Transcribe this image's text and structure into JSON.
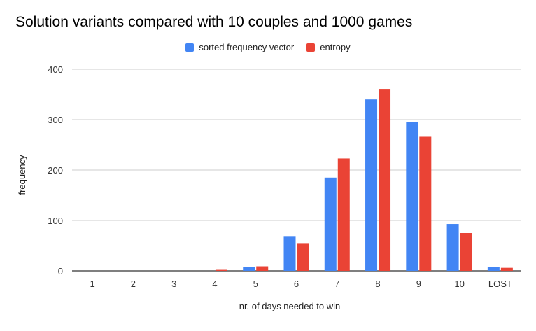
{
  "chart_data": {
    "type": "bar",
    "title": "Solution variants compared with 10 couples and 1000 games",
    "xlabel": "nr. of days needed to win",
    "ylabel": "frequency",
    "categories": [
      "1",
      "2",
      "3",
      "4",
      "5",
      "6",
      "7",
      "8",
      "9",
      "10",
      "LOST"
    ],
    "series": [
      {
        "name": "sorted frequency vector",
        "color": "#4285f4",
        "values": [
          0,
          0,
          0,
          0,
          7,
          69,
          185,
          340,
          295,
          93,
          8
        ]
      },
      {
        "name": "entropy",
        "color": "#ea4335",
        "values": [
          0,
          0,
          0,
          2,
          9,
          55,
          223,
          361,
          266,
          75,
          6
        ]
      }
    ],
    "ylim": [
      0,
      400
    ],
    "yticks": [
      0,
      100,
      200,
      300,
      400
    ],
    "grid": true,
    "legend_position": "top-center"
  }
}
